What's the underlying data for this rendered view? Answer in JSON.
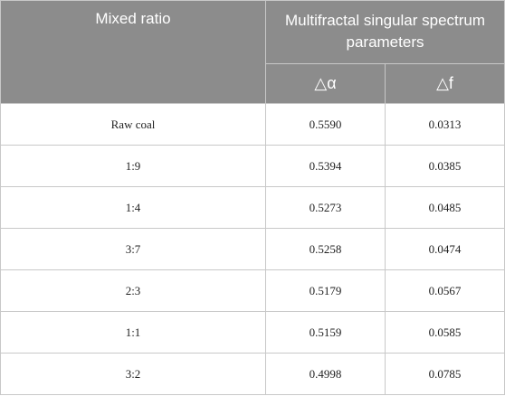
{
  "header": {
    "mixed_ratio": "Mixed ratio",
    "group": "Multifractal singular spectrum parameters",
    "sub": [
      "△α",
      "△f"
    ]
  },
  "rows": [
    {
      "ratio": "Raw coal",
      "delta_alpha": "0.5590",
      "delta_f": "0.0313"
    },
    {
      "ratio": "1:9",
      "delta_alpha": "0.5394",
      "delta_f": "0.0385"
    },
    {
      "ratio": "1:4",
      "delta_alpha": "0.5273",
      "delta_f": "0.0485"
    },
    {
      "ratio": "3:7",
      "delta_alpha": "0.5258",
      "delta_f": "0.0474"
    },
    {
      "ratio": "2:3",
      "delta_alpha": "0.5179",
      "delta_f": "0.0567"
    },
    {
      "ratio": "1:1",
      "delta_alpha": "0.5159",
      "delta_f": "0.0585"
    },
    {
      "ratio": "3:2",
      "delta_alpha": "0.4998",
      "delta_f": "0.0785"
    }
  ]
}
